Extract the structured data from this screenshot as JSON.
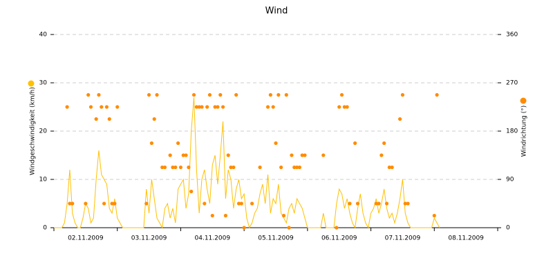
{
  "chart_data": {
    "type": "line-scatter",
    "title": "Wind",
    "categories": [
      null,
      null,
      null,
      null,
      null,
      null,
      null,
      null,
      null,
      null,
      null,
      null,
      "02.11.2009",
      null,
      null,
      null,
      null,
      null,
      null,
      null,
      null,
      null,
      null,
      null,
      null,
      null,
      null,
      null,
      null,
      null,
      null,
      null,
      null,
      null,
      null,
      null,
      "03.11.2009",
      null,
      null,
      null,
      null,
      null,
      null,
      null,
      null,
      null,
      null,
      null,
      null,
      null,
      null,
      null,
      null,
      null,
      null,
      null,
      null,
      null,
      null,
      null,
      "04.11.2009",
      null,
      null,
      null,
      null,
      null,
      null,
      null,
      null,
      null,
      null,
      null,
      null,
      null,
      null,
      null,
      null,
      null,
      null,
      null,
      null,
      null,
      null,
      null,
      "05.11.2009",
      null,
      null,
      null,
      null,
      null,
      null,
      null,
      null,
      null,
      null,
      null,
      null,
      null,
      null,
      null,
      null,
      null,
      null,
      null,
      null,
      null,
      null,
      null,
      "06.11.2009",
      null,
      null,
      null,
      null,
      null,
      null,
      null,
      null,
      null,
      null,
      null,
      null,
      null,
      null,
      null,
      null,
      null,
      null,
      null,
      null,
      null,
      null,
      null,
      "07.11.2009",
      null,
      null,
      null,
      null,
      null,
      null,
      null,
      null,
      null,
      null,
      null,
      null,
      null,
      null,
      null,
      null,
      null,
      null,
      null,
      null,
      null,
      null,
      null,
      "08.11.2009",
      null,
      null,
      null,
      null,
      null,
      null,
      null,
      null,
      null,
      null,
      null
    ],
    "series": [
      {
        "name": "Windgeschwindigkeit (km/h)",
        "kind": "line",
        "color": "#ffc000",
        "values": [
          0,
          0,
          0,
          0,
          1,
          5,
          12,
          3,
          1,
          0,
          0,
          2,
          5,
          4,
          1,
          2,
          10,
          16,
          11,
          10,
          9,
          4,
          3,
          6,
          2,
          1,
          0,
          0,
          0,
          0,
          0,
          0,
          0,
          0,
          0,
          8,
          3,
          10,
          6,
          2,
          1,
          0,
          4,
          5,
          2,
          4,
          1,
          8,
          9,
          10,
          4,
          7,
          20,
          27,
          12,
          3,
          10,
          12,
          8,
          5,
          13,
          15,
          9,
          15,
          22,
          6,
          12,
          10,
          4,
          8,
          10,
          6,
          7,
          2,
          0,
          1,
          3,
          4,
          7,
          9,
          5,
          11,
          3,
          6,
          5,
          9,
          3,
          2,
          1,
          4,
          5,
          3,
          6,
          5,
          4,
          2,
          0,
          0,
          0,
          0,
          0,
          0,
          3,
          0,
          0,
          0,
          0,
          5,
          8,
          7,
          4,
          6,
          3,
          1,
          0,
          4,
          7,
          3,
          1,
          0,
          3,
          4,
          6,
          3,
          5,
          8,
          4,
          2,
          3,
          1,
          3,
          6,
          10,
          3,
          1,
          0,
          0,
          0,
          0,
          0,
          0,
          0,
          0,
          0,
          2,
          1,
          0,
          null,
          null,
          null,
          null,
          null,
          null,
          null,
          null,
          null,
          null,
          null,
          null,
          null,
          null,
          null,
          null,
          null,
          null,
          null,
          null,
          null
        ]
      },
      {
        "name": "Windrichtung (°)",
        "kind": "scatter",
        "axis": "y2",
        "color": "#ff8c00",
        "values": [
          null,
          null,
          null,
          null,
          null,
          225,
          45,
          45,
          null,
          null,
          null,
          null,
          45,
          247.5,
          225,
          null,
          202.5,
          247.5,
          225,
          45,
          225,
          202.5,
          45,
          45,
          225,
          null,
          null,
          null,
          null,
          null,
          null,
          null,
          null,
          null,
          null,
          45,
          247.5,
          157.5,
          202.5,
          247.5,
          null,
          112.5,
          112.5,
          null,
          135,
          112.5,
          112.5,
          157.5,
          112.5,
          135,
          135,
          112.5,
          67.5,
          247.5,
          225,
          225,
          225,
          45,
          225,
          247.5,
          22.5,
          225,
          225,
          247.5,
          225,
          22.5,
          135,
          112.5,
          112.5,
          247.5,
          45,
          45,
          0,
          null,
          null,
          45,
          null,
          null,
          112.5,
          null,
          null,
          225,
          247.5,
          225,
          157.5,
          247.5,
          112.5,
          22.5,
          247.5,
          0,
          135,
          112.5,
          112.5,
          112.5,
          135,
          135,
          null,
          null,
          null,
          null,
          null,
          null,
          135,
          null,
          null,
          null,
          null,
          0,
          225,
          247.5,
          225,
          225,
          45,
          null,
          157.5,
          45,
          null,
          null,
          null,
          null,
          null,
          null,
          45,
          45,
          135,
          157.5,
          45,
          112.5,
          112.5,
          null,
          null,
          202.5,
          247.5,
          45,
          45,
          null,
          null,
          null,
          null,
          null,
          null,
          null,
          null,
          null,
          22.5,
          247.5,
          null,
          null,
          null,
          null,
          null,
          null,
          null,
          null,
          null,
          null,
          null,
          null,
          null,
          null,
          null,
          null,
          null,
          null,
          null,
          null,
          null,
          null
        ]
      }
    ],
    "ylim": [
      0,
      40
    ],
    "yticks": [
      0,
      10,
      20,
      30,
      40
    ],
    "y2lim": [
      0,
      360
    ],
    "y2ticks": [
      0,
      90,
      180,
      270,
      360
    ],
    "grid": true
  }
}
